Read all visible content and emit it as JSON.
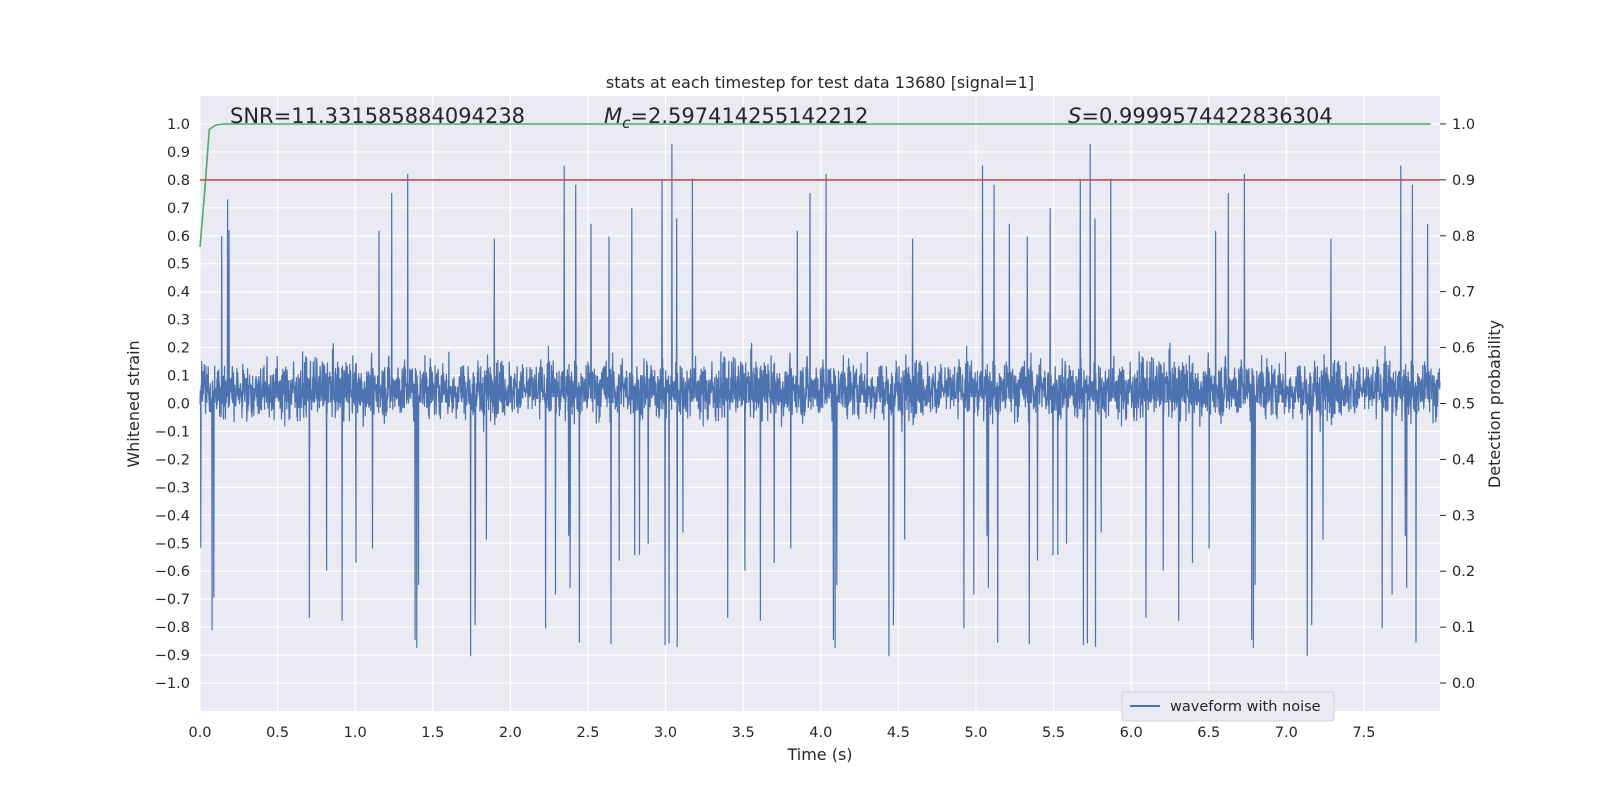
{
  "chart_data": {
    "type": "line",
    "title": "stats at each timestep for test data 13680 [signal=1]",
    "xlabel": "Time (s)",
    "ylabel": "Whitened strain",
    "y2label": "Detection probability",
    "xlim": [
      0.0,
      7.99
    ],
    "ylim": [
      -1.1,
      1.1
    ],
    "y2lim": [
      -0.05,
      1.05
    ],
    "xticks": [
      "0.0",
      "0.5",
      "1.0",
      "1.5",
      "2.0",
      "2.5",
      "3.0",
      "3.5",
      "4.0",
      "4.5",
      "5.0",
      "5.5",
      "6.0",
      "6.5",
      "7.0",
      "7.5"
    ],
    "yticks": [
      "1.0",
      "0.9",
      "0.8",
      "0.7",
      "0.6",
      "0.5",
      "0.4",
      "0.3",
      "0.2",
      "0.1",
      "0.0",
      "−0.1",
      "−0.2",
      "−0.3",
      "−0.4",
      "−0.5",
      "−0.6",
      "−0.7",
      "−0.8",
      "−0.9",
      "−1.0"
    ],
    "y2ticks": [
      "1.0",
      "0.9",
      "0.8",
      "0.7",
      "0.6",
      "0.5",
      "0.4",
      "0.3",
      "0.2",
      "0.1",
      "0.0"
    ],
    "grid": true,
    "legend_position": "lower-right",
    "annotations": {
      "snr": "SNR=11.331585884094238",
      "mc_symbol": "M",
      "mc_sub": "c",
      "mc_value": "=2.597414255142212",
      "s_symbol": "S",
      "s_value": "=0.9999574422836304"
    },
    "series": [
      {
        "name": "waveform with noise",
        "axis": "left",
        "kind": "noise",
        "envelope_typical": [
          -0.45,
          0.55
        ],
        "envelope_extreme": [
          -1.0,
          0.97
        ],
        "color": "#4c72b0"
      },
      {
        "axis": "right",
        "x": [
          0.0,
          0.03,
          0.06,
          0.1,
          0.15,
          0.3,
          1.0,
          2.0,
          4.0,
          6.0,
          7.93
        ],
        "values": [
          0.78,
          0.88,
          0.99,
          0.998,
          1.0,
          1.0,
          1.0,
          1.0,
          1.0,
          1.0,
          1.0
        ],
        "color": "#55a868"
      },
      {
        "axis": "right",
        "x": [
          0.0,
          7.99
        ],
        "values": [
          0.9,
          0.9
        ],
        "color": "#c44e52"
      }
    ]
  },
  "colors": {
    "background": "#eaeaf2",
    "grid": "#ffffff",
    "waveform": "#4c72b0",
    "probability": "#55a868",
    "threshold": "#c44e52"
  }
}
